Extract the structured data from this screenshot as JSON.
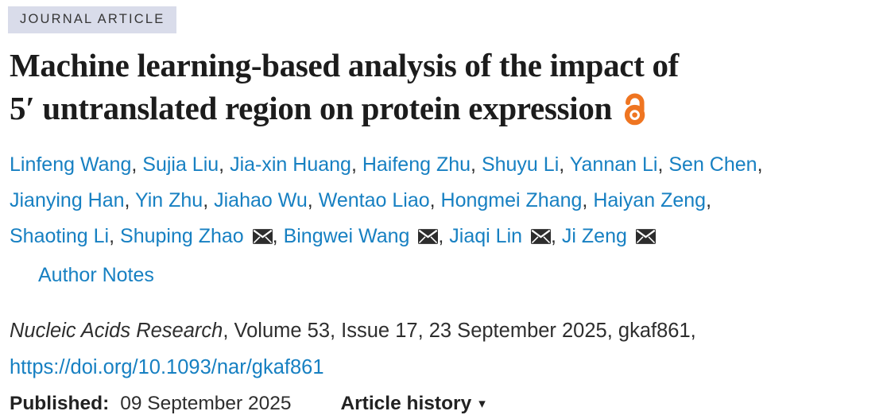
{
  "badge": {
    "label": "JOURNAL ARTICLE"
  },
  "title": {
    "line1": "Machine learning-based analysis of the impact of",
    "line2": "5′ untranslated region on protein expression"
  },
  "authors": [
    {
      "name": "Linfeng Wang"
    },
    {
      "name": "Sujia Liu"
    },
    {
      "name": "Jia-xin Huang"
    },
    {
      "name": "Haifeng Zhu"
    },
    {
      "name": "Shuyu Li"
    },
    {
      "name": "Yannan Li"
    },
    {
      "name": "Sen Chen",
      "break_after": true
    },
    {
      "name": "Jianying Han"
    },
    {
      "name": "Yin Zhu"
    },
    {
      "name": "Jiahao Wu"
    },
    {
      "name": "Wentao Liao"
    },
    {
      "name": "Hongmei Zhang"
    },
    {
      "name": "Haiyan Zeng",
      "break_after": true
    },
    {
      "name": "Shaoting Li"
    },
    {
      "name": "Shuping Zhao",
      "envelope": true
    },
    {
      "name": "Bingwei Wang",
      "envelope": true
    },
    {
      "name": "Jiaqi Lin",
      "envelope": true
    },
    {
      "name": "Ji Zeng",
      "envelope": true
    }
  ],
  "author_notes_label": "Author Notes",
  "citation": {
    "journal": "Nucleic Acids Research",
    "details": ", Volume 53, Issue 17, 23 September 2025, gkaf861,",
    "doi": "https://doi.org/10.1093/nar/gkaf861"
  },
  "published": {
    "label": "Published:",
    "date": "09 September 2025"
  },
  "article_history": {
    "label": "Article history",
    "caret": "▾"
  },
  "icons": {
    "open_access": "open-access-icon",
    "envelope": "envelope-icon",
    "caret": "caret-down-icon"
  },
  "colors": {
    "link_blue": "#1780c2",
    "open_access_orange": "#ef7521",
    "badge_bg": "#d9dcea",
    "text_dark": "#2e2e2e"
  }
}
